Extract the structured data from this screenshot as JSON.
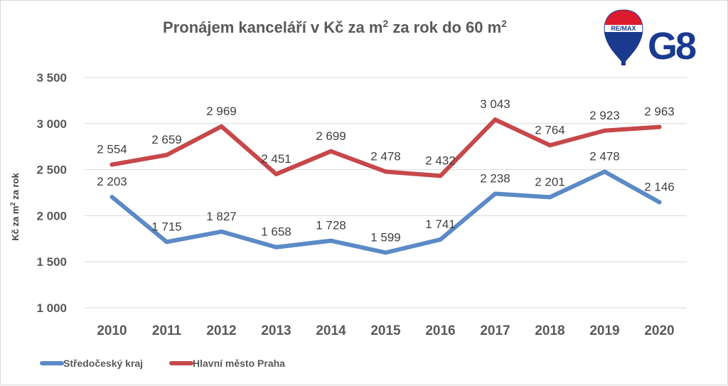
{
  "logo": {
    "remax_text": "RE/MAX",
    "g8_text": "G8",
    "colors": {
      "red": "#dc1c2e",
      "blue": "#1a3a8f",
      "white": "#ffffff"
    }
  },
  "chart_data": {
    "type": "line",
    "title_parts": [
      "Pronájem kanceláří v Kč za m",
      "2",
      " za rok do 60 m",
      "2"
    ],
    "ylabel_parts": [
      "Kč za m",
      "2",
      " za rok"
    ],
    "xlabel": "",
    "categories": [
      "2010",
      "2011",
      "2012",
      "2013",
      "2014",
      "2015",
      "2016",
      "2017",
      "2018",
      "2019",
      "2020"
    ],
    "ylim": [
      1000,
      3500
    ],
    "yticks": [
      1000,
      1500,
      2000,
      2500,
      3000,
      3500
    ],
    "ytick_labels": [
      "1 000",
      "1 500",
      "2 000",
      "2 500",
      "3 000",
      "3 500"
    ],
    "grid": true,
    "legend_position": "bottom-left",
    "series": [
      {
        "name": "Středočeský kraj",
        "color": "#5b8ac6",
        "values": [
          2203,
          1715,
          1827,
          1658,
          1728,
          1599,
          1741,
          2238,
          2201,
          2478,
          2146
        ],
        "labels": [
          "2 203",
          "1 715",
          "1 827",
          "1 658",
          "1 728",
          "1 599",
          "1 741",
          "2 238",
          "2 201",
          "2 478",
          "2 146"
        ]
      },
      {
        "name": "Hlavní město Praha",
        "color": "#c7484a",
        "values": [
          2554,
          2659,
          2969,
          2451,
          2699,
          2478,
          2432,
          3043,
          2764,
          2923,
          2963
        ],
        "labels": [
          "2 554",
          "2 659",
          "2 969",
          "2 451",
          "2 699",
          "2 478",
          "2 432",
          "3 043",
          "2 764",
          "2 923",
          "2 963"
        ]
      }
    ]
  }
}
